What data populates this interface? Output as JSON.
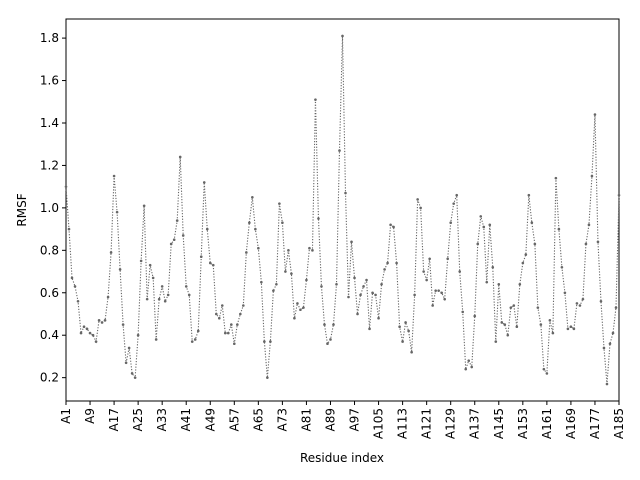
{
  "chart_data": {
    "type": "line",
    "title": "",
    "xlabel": "Residue index",
    "ylabel": "RMSF",
    "xlim": [
      1,
      185
    ],
    "ylim": [
      0.09,
      1.89
    ],
    "grid": false,
    "legend": "none",
    "line_style": "dotted",
    "marker": "small-dot",
    "color": "#666666",
    "y_ticks": [
      "0.2",
      "0.4",
      "0.6",
      "0.8",
      "1.0",
      "1.2",
      "1.4",
      "1.6",
      "1.8"
    ],
    "y_tick_values": [
      0.2,
      0.4,
      0.6,
      0.8,
      1.0,
      1.2,
      1.4,
      1.6,
      1.8
    ],
    "x_ticks": [
      "A1",
      "A9",
      "A17",
      "A25",
      "A33",
      "A41",
      "A49",
      "A57",
      "A65",
      "A73",
      "A81",
      "A89",
      "A97",
      "A105",
      "A113",
      "A121",
      "A129",
      "A137",
      "A145",
      "A153",
      "A161",
      "A169",
      "A177",
      "A185"
    ],
    "x_tick_values": [
      1,
      9,
      17,
      25,
      33,
      41,
      49,
      57,
      65,
      73,
      81,
      89,
      97,
      105,
      113,
      121,
      129,
      137,
      145,
      153,
      161,
      169,
      177,
      185
    ],
    "x": [
      1,
      2,
      3,
      4,
      5,
      6,
      7,
      8,
      9,
      10,
      11,
      12,
      13,
      14,
      15,
      16,
      17,
      18,
      19,
      20,
      21,
      22,
      23,
      24,
      25,
      26,
      27,
      28,
      29,
      30,
      31,
      32,
      33,
      34,
      35,
      36,
      37,
      38,
      39,
      40,
      41,
      42,
      43,
      44,
      45,
      46,
      47,
      48,
      49,
      50,
      51,
      52,
      53,
      54,
      55,
      56,
      57,
      58,
      59,
      60,
      61,
      62,
      63,
      64,
      65,
      66,
      67,
      68,
      69,
      70,
      71,
      72,
      73,
      74,
      75,
      76,
      77,
      78,
      79,
      80,
      81,
      82,
      83,
      84,
      85,
      86,
      87,
      88,
      89,
      90,
      91,
      92,
      93,
      94,
      95,
      96,
      97,
      98,
      99,
      100,
      101,
      102,
      103,
      104,
      105,
      106,
      107,
      108,
      109,
      110,
      111,
      112,
      113,
      114,
      115,
      116,
      117,
      118,
      119,
      120,
      121,
      122,
      123,
      124,
      125,
      126,
      127,
      128,
      129,
      130,
      131,
      132,
      133,
      134,
      135,
      136,
      137,
      138,
      139,
      140,
      141,
      142,
      143,
      144,
      145,
      146,
      147,
      148,
      149,
      150,
      151,
      152,
      153,
      154,
      155,
      156,
      157,
      158,
      159,
      160,
      161,
      162,
      163,
      164,
      165,
      166,
      167,
      168,
      169,
      170,
      171,
      172,
      173,
      174,
      175,
      176,
      177,
      178,
      179,
      180,
      181,
      182,
      183,
      184,
      185
    ],
    "values": [
      1.1,
      0.9,
      0.67,
      0.63,
      0.56,
      0.41,
      0.44,
      0.43,
      0.41,
      0.4,
      0.37,
      0.47,
      0.46,
      0.47,
      0.58,
      0.79,
      1.15,
      0.98,
      0.71,
      0.45,
      0.27,
      0.34,
      0.22,
      0.2,
      0.4,
      0.75,
      1.01,
      0.57,
      0.73,
      0.67,
      0.38,
      0.57,
      0.63,
      0.56,
      0.59,
      0.83,
      0.85,
      0.94,
      1.24,
      0.87,
      0.63,
      0.59,
      0.37,
      0.38,
      0.42,
      0.77,
      1.12,
      0.9,
      0.74,
      0.73,
      0.5,
      0.48,
      0.54,
      0.41,
      0.41,
      0.45,
      0.36,
      0.45,
      0.5,
      0.54,
      0.79,
      0.93,
      1.05,
      0.9,
      0.81,
      0.65,
      0.37,
      0.2,
      0.37,
      0.61,
      0.64,
      1.02,
      0.93,
      0.7,
      0.8,
      0.69,
      0.48,
      0.55,
      0.52,
      0.53,
      0.66,
      0.81,
      0.8,
      1.51,
      0.95,
      0.63,
      0.45,
      0.36,
      0.38,
      0.45,
      0.64,
      1.27,
      1.81,
      1.07,
      0.58,
      0.84,
      0.67,
      0.5,
      0.59,
      0.63,
      0.66,
      0.43,
      0.6,
      0.59,
      0.48,
      0.64,
      0.71,
      0.74,
      0.92,
      0.91,
      0.74,
      0.44,
      0.37,
      0.46,
      0.42,
      0.32,
      0.59,
      1.04,
      1.0,
      0.7,
      0.66,
      0.76,
      0.54,
      0.61,
      0.61,
      0.6,
      0.57,
      0.76,
      0.93,
      1.02,
      1.06,
      0.7,
      0.51,
      0.24,
      0.28,
      0.25,
      0.49,
      0.83,
      0.96,
      0.91,
      0.65,
      0.92,
      0.72,
      0.37,
      0.64,
      0.46,
      0.45,
      0.4,
      0.53,
      0.54,
      0.44,
      0.64,
      0.74,
      0.78,
      1.06,
      0.93,
      0.83,
      0.53,
      0.45,
      0.24,
      0.22,
      0.47,
      0.41,
      1.14,
      0.9,
      0.72,
      0.6,
      0.43,
      0.44,
      0.43,
      0.55,
      0.54,
      0.57,
      0.83,
      0.92,
      1.15,
      1.44,
      0.84,
      0.56,
      0.34,
      0.17,
      0.36,
      0.41,
      0.53,
      1.06
    ]
  }
}
